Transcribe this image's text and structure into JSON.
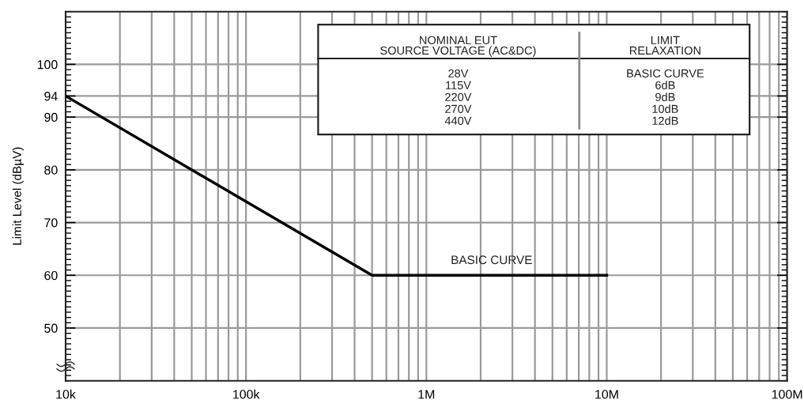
{
  "chart_data": {
    "type": "line",
    "ylabel": "Limit Level (dBµV)",
    "series": [
      {
        "color": "#000000",
        "x": [
          10000,
          500000,
          10000000
        ],
        "values": [
          94,
          60,
          60
        ]
      }
    ],
    "log": "x",
    "xlim": [
      10000,
      100000000
    ],
    "xticks": [
      {
        "value": 10000,
        "label": "10k"
      },
      {
        "value": 100000,
        "label": "100k"
      },
      {
        "value": 1000000,
        "label": "1M"
      },
      {
        "value": 10000000,
        "label": "10M"
      },
      {
        "value": 100000000,
        "label": "100M"
      }
    ],
    "ylim": [
      40,
      110
    ],
    "yticks": [
      50,
      60,
      70,
      80,
      90,
      94,
      100
    ],
    "grid": true,
    "annotations": [
      "NOMINAL EUT\nSOURCE VOLTAGE (AC&DC)",
      "LIMIT\nRELAXATION",
      "28V",
      "BASIC CURVE",
      "115V",
      "6dB",
      "220V",
      "9dB",
      "270V",
      "10dB",
      "440V",
      "12dB",
      {
        "text": "BASIC CURVE",
        "x": 2300000,
        "y": 60
      }
    ]
  }
}
